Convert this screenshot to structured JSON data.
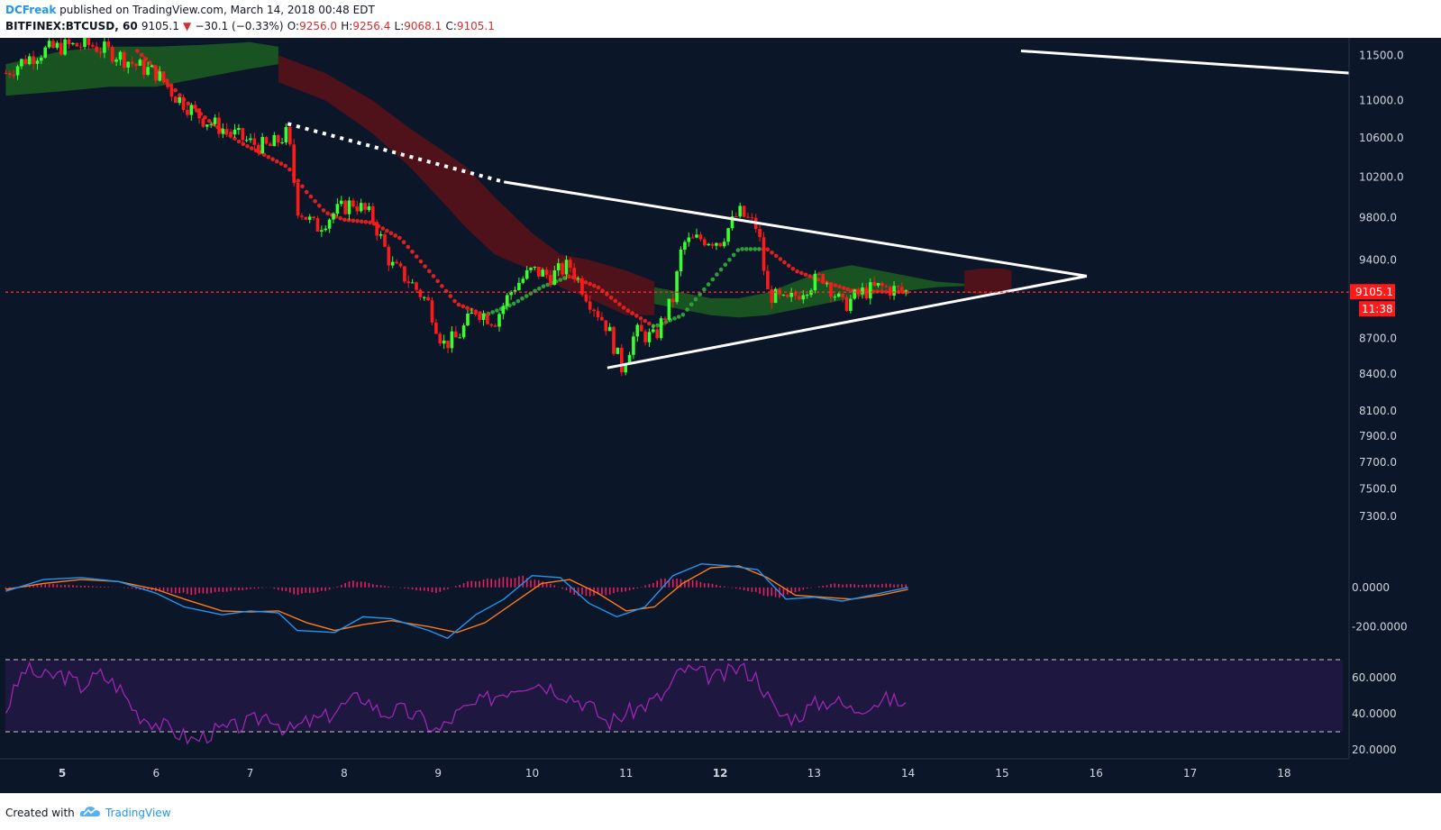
{
  "header": {
    "author": "DCFreak",
    "published_text": "published on TradingView.com, March 14, 2018 00:48 EDT",
    "symbol": "BITFINEX:BTCUSD, 60",
    "last": "9105.1",
    "change_arrow": "▼",
    "change": "−30.1 (−0.33%)",
    "open_label": "O:",
    "open": "9256.0",
    "high_label": "H:",
    "high": "9256.4",
    "low_label": "L:",
    "low": "9068.1",
    "close_label": "C:",
    "close": "9105.1"
  },
  "footer": {
    "created_with": "Created with",
    "brand": "TradingView",
    "logo_icon": "tradingview-cloud-icon"
  },
  "colors": {
    "background": "#0b1629",
    "up_candle": "#39ff30",
    "down_candle": "#ff1a1a",
    "price_line": "#ff2a2a",
    "macd_line": "#2196f3",
    "signal_line": "#ff7a1a",
    "histogram": "#e91e63",
    "rsi_line": "#9c27b0",
    "rsi_band": "#1e1740",
    "kumo_bull": "#1b5e20",
    "kumo_bear": "#5d1218",
    "trendline": "#ffffff"
  },
  "chart_data": {
    "type": "candlestick",
    "x_ticks": [
      "5",
      "6",
      "7",
      "8",
      "9",
      "10",
      "11",
      "12",
      "13",
      "14",
      "15",
      "16",
      "17",
      "18"
    ],
    "x_tick_bold": [
      "5",
      "12"
    ],
    "price_axis": {
      "ticks": [
        "11500.0",
        "11000.0",
        "10600.0",
        "10200.0",
        "9800.0",
        "9400.0",
        "8700.0",
        "8400.0",
        "8100.0",
        "7900.0",
        "7700.0",
        "7500.0",
        "7300.0"
      ],
      "tick_values": [
        11500,
        11000,
        10600,
        10200,
        9800,
        9400,
        8700,
        8400,
        8100,
        7900,
        7700,
        7500,
        7300
      ],
      "scale": "log",
      "range": [
        7050,
        11700
      ]
    },
    "last_price": {
      "value": 9105.1,
      "label": "9105.1",
      "countdown": "11:38"
    },
    "price_path": [
      [
        4.4,
        11300
      ],
      [
        4.6,
        11450
      ],
      [
        4.8,
        11550
      ],
      [
        5.0,
        11600
      ],
      [
        5.3,
        11620
      ],
      [
        5.6,
        11500
      ],
      [
        5.8,
        11380
      ],
      [
        6.0,
        11300
      ],
      [
        6.2,
        11050
      ],
      [
        6.5,
        10800
      ],
      [
        6.8,
        10650
      ],
      [
        7.0,
        10550
      ],
      [
        7.2,
        10500
      ],
      [
        7.4,
        10650
      ],
      [
        7.5,
        9900
      ],
      [
        7.7,
        9700
      ],
      [
        7.9,
        9850
      ],
      [
        8.1,
        9950
      ],
      [
        8.3,
        9800
      ],
      [
        8.5,
        9350
      ],
      [
        8.7,
        9200
      ],
      [
        8.9,
        9000
      ],
      [
        9.05,
        8650
      ],
      [
        9.2,
        8700
      ],
      [
        9.4,
        8950
      ],
      [
        9.6,
        8850
      ],
      [
        9.8,
        9150
      ],
      [
        10.0,
        9300
      ],
      [
        10.2,
        9250
      ],
      [
        10.4,
        9350
      ],
      [
        10.6,
        9050
      ],
      [
        10.8,
        8800
      ],
      [
        10.95,
        8450
      ],
      [
        11.1,
        8750
      ],
      [
        11.3,
        8700
      ],
      [
        11.5,
        9050
      ],
      [
        11.6,
        9550
      ],
      [
        11.8,
        9600
      ],
      [
        12.0,
        9580
      ],
      [
        12.2,
        9850
      ],
      [
        12.4,
        9700
      ],
      [
        12.5,
        9100
      ],
      [
        12.7,
        9000
      ],
      [
        12.9,
        9150
      ],
      [
        13.1,
        9250
      ],
      [
        13.3,
        8980
      ],
      [
        13.5,
        9100
      ],
      [
        13.7,
        9150
      ],
      [
        14.0,
        9105
      ]
    ],
    "ema_path": [
      [
        5.8,
        11550
      ],
      [
        6.0,
        11350
      ],
      [
        6.3,
        11000
      ],
      [
        6.6,
        10750
      ],
      [
        6.9,
        10550
      ],
      [
        7.2,
        10400
      ],
      [
        7.4,
        10300
      ],
      [
        7.6,
        10050
      ],
      [
        7.8,
        9850
      ],
      [
        8.0,
        9780
      ],
      [
        8.3,
        9750
      ],
      [
        8.6,
        9600
      ],
      [
        8.9,
        9300
      ],
      [
        9.2,
        9000
      ],
      [
        9.5,
        8900
      ],
      [
        9.8,
        9000
      ],
      [
        10.1,
        9150
      ],
      [
        10.4,
        9250
      ],
      [
        10.7,
        9150
      ],
      [
        11.0,
        8950
      ],
      [
        11.3,
        8800
      ],
      [
        11.6,
        8900
      ],
      [
        11.9,
        9200
      ],
      [
        12.2,
        9500
      ],
      [
        12.5,
        9500
      ],
      [
        12.8,
        9300
      ],
      [
        13.1,
        9200
      ],
      [
        13.4,
        9120
      ],
      [
        13.7,
        9110
      ],
      [
        14.0,
        9105
      ]
    ],
    "ichimoku_cloud": [
      {
        "color": "bull",
        "x": [
          4.4,
          5.0,
          5.5,
          6.0,
          6.5,
          7.0,
          7.3
        ],
        "top": [
          11400,
          11550,
          11600,
          11600,
          11620,
          11650,
          11600
        ],
        "bottom": [
          11050,
          11100,
          11150,
          11150,
          11250,
          11350,
          11400
        ]
      },
      {
        "color": "bear",
        "x": [
          7.3,
          7.8,
          8.3,
          8.7,
          9.0,
          9.3,
          9.6,
          10.0,
          10.3,
          10.6,
          11.0,
          11.3
        ],
        "top": [
          11500,
          11300,
          11000,
          10700,
          10500,
          10300,
          10000,
          9650,
          9450,
          9400,
          9300,
          9200
        ],
        "bottom": [
          11200,
          11000,
          10650,
          10300,
          10000,
          9700,
          9450,
          9300,
          9150,
          9050,
          8900,
          8900
        ]
      },
      {
        "color": "bull",
        "x": [
          11.3,
          11.6,
          11.9,
          12.2,
          12.5,
          12.8,
          13.1,
          13.4,
          13.7,
          14.0,
          14.3,
          14.6
        ],
        "top": [
          9150,
          9100,
          9050,
          9050,
          9100,
          9200,
          9300,
          9350,
          9300,
          9250,
          9200,
          9180
        ],
        "bottom": [
          9000,
          8950,
          8900,
          8880,
          8900,
          8950,
          9000,
          9050,
          9100,
          9120,
          9150,
          9160
        ]
      },
      {
        "color": "bear",
        "x": [
          14.6,
          14.8,
          15.0,
          15.1
        ],
        "top": [
          9300,
          9320,
          9320,
          9300
        ],
        "bottom": [
          9100,
          9080,
          9080,
          9120
        ]
      }
    ],
    "trendlines": [
      {
        "style": "dotted",
        "from": [
          7.4,
          10750
        ],
        "to": [
          9.7,
          10150
        ]
      },
      {
        "style": "solid",
        "from": [
          9.7,
          10150
        ],
        "to": [
          15.9,
          9250
        ]
      },
      {
        "style": "solid",
        "from": [
          10.8,
          8450
        ],
        "to": [
          15.9,
          9250
        ]
      },
      {
        "style": "solid",
        "from": [
          15.2,
          11550
        ],
        "to": [
          18.7,
          11300
        ]
      }
    ],
    "macd": {
      "axis_ticks": [
        "0.0000",
        "-200.0000"
      ],
      "tick_values": [
        0,
        -200
      ],
      "range": [
        -300,
        160
      ],
      "macd": [
        [
          4.4,
          -20
        ],
        [
          4.8,
          40
        ],
        [
          5.2,
          50
        ],
        [
          5.6,
          30
        ],
        [
          6.0,
          -30
        ],
        [
          6.3,
          -100
        ],
        [
          6.7,
          -140
        ],
        [
          7.0,
          -120
        ],
        [
          7.3,
          -130
        ],
        [
          7.5,
          -220
        ],
        [
          7.9,
          -230
        ],
        [
          8.2,
          -150
        ],
        [
          8.5,
          -160
        ],
        [
          8.9,
          -220
        ],
        [
          9.1,
          -260
        ],
        [
          9.4,
          -140
        ],
        [
          9.7,
          -60
        ],
        [
          10.0,
          60
        ],
        [
          10.3,
          50
        ],
        [
          10.6,
          -80
        ],
        [
          10.9,
          -150
        ],
        [
          11.2,
          -100
        ],
        [
          11.5,
          60
        ],
        [
          11.8,
          120
        ],
        [
          12.1,
          110
        ],
        [
          12.4,
          90
        ],
        [
          12.7,
          -60
        ],
        [
          13.0,
          -50
        ],
        [
          13.3,
          -70
        ],
        [
          13.6,
          -40
        ],
        [
          14.0,
          0
        ]
      ],
      "signal": [
        [
          4.4,
          -10
        ],
        [
          4.8,
          20
        ],
        [
          5.2,
          40
        ],
        [
          5.6,
          30
        ],
        [
          6.0,
          -10
        ],
        [
          6.3,
          -60
        ],
        [
          6.7,
          -120
        ],
        [
          7.0,
          -125
        ],
        [
          7.3,
          -120
        ],
        [
          7.6,
          -180
        ],
        [
          7.9,
          -220
        ],
        [
          8.2,
          -190
        ],
        [
          8.5,
          -170
        ],
        [
          8.9,
          -200
        ],
        [
          9.2,
          -230
        ],
        [
          9.5,
          -180
        ],
        [
          9.8,
          -80
        ],
        [
          10.1,
          20
        ],
        [
          10.4,
          40
        ],
        [
          10.7,
          -30
        ],
        [
          11.0,
          -120
        ],
        [
          11.3,
          -100
        ],
        [
          11.6,
          20
        ],
        [
          11.9,
          100
        ],
        [
          12.2,
          110
        ],
        [
          12.5,
          50
        ],
        [
          12.8,
          -40
        ],
        [
          13.1,
          -50
        ],
        [
          13.4,
          -60
        ],
        [
          13.7,
          -40
        ],
        [
          14.0,
          -10
        ]
      ],
      "histogram_envelope": [
        [
          4.4,
          -10
        ],
        [
          4.8,
          20
        ],
        [
          5.2,
          10
        ],
        [
          5.6,
          0
        ],
        [
          6.0,
          -20
        ],
        [
          6.4,
          -40
        ],
        [
          6.8,
          -20
        ],
        [
          7.2,
          0
        ],
        [
          7.5,
          -40
        ],
        [
          7.8,
          -20
        ],
        [
          8.1,
          40
        ],
        [
          8.4,
          10
        ],
        [
          8.7,
          -10
        ],
        [
          9.0,
          -30
        ],
        [
          9.3,
          30
        ],
        [
          9.6,
          50
        ],
        [
          9.9,
          60
        ],
        [
          10.2,
          20
        ],
        [
          10.5,
          -50
        ],
        [
          10.8,
          -40
        ],
        [
          11.1,
          -10
        ],
        [
          11.4,
          50
        ],
        [
          11.7,
          40
        ],
        [
          12.0,
          10
        ],
        [
          12.3,
          -20
        ],
        [
          12.6,
          -60
        ],
        [
          12.9,
          -10
        ],
        [
          13.2,
          20
        ],
        [
          13.5,
          15
        ],
        [
          13.8,
          20
        ],
        [
          14.0,
          15
        ]
      ]
    },
    "rsi": {
      "axis_ticks": [
        "60.0000",
        "40.0000",
        "20.0000"
      ],
      "tick_values": [
        60,
        40,
        20
      ],
      "range": [
        15,
        75
      ],
      "band": [
        30,
        70
      ],
      "values": [
        [
          4.4,
          42
        ],
        [
          4.6,
          65
        ],
        [
          4.8,
          60
        ],
        [
          5.0,
          62
        ],
        [
          5.2,
          55
        ],
        [
          5.4,
          62
        ],
        [
          5.6,
          55
        ],
        [
          5.8,
          40
        ],
        [
          6.0,
          35
        ],
        [
          6.2,
          30
        ],
        [
          6.4,
          25
        ],
        [
          6.6,
          30
        ],
        [
          6.8,
          32
        ],
        [
          7.0,
          35
        ],
        [
          7.2,
          40
        ],
        [
          7.4,
          30
        ],
        [
          7.6,
          35
        ],
        [
          7.8,
          38
        ],
        [
          8.0,
          45
        ],
        [
          8.2,
          50
        ],
        [
          8.4,
          40
        ],
        [
          8.6,
          42
        ],
        [
          8.8,
          38
        ],
        [
          9.0,
          30
        ],
        [
          9.2,
          40
        ],
        [
          9.4,
          45
        ],
        [
          9.6,
          50
        ],
        [
          9.8,
          55
        ],
        [
          10.0,
          58
        ],
        [
          10.2,
          55
        ],
        [
          10.4,
          50
        ],
        [
          10.6,
          45
        ],
        [
          10.8,
          35
        ],
        [
          11.0,
          40
        ],
        [
          11.2,
          45
        ],
        [
          11.4,
          50
        ],
        [
          11.6,
          65
        ],
        [
          11.8,
          62
        ],
        [
          12.0,
          60
        ],
        [
          12.2,
          66
        ],
        [
          12.4,
          60
        ],
        [
          12.6,
          40
        ],
        [
          12.8,
          38
        ],
        [
          13.0,
          45
        ],
        [
          13.2,
          48
        ],
        [
          13.4,
          42
        ],
        [
          13.6,
          46
        ],
        [
          13.8,
          48
        ],
        [
          14.0,
          45
        ]
      ]
    }
  }
}
